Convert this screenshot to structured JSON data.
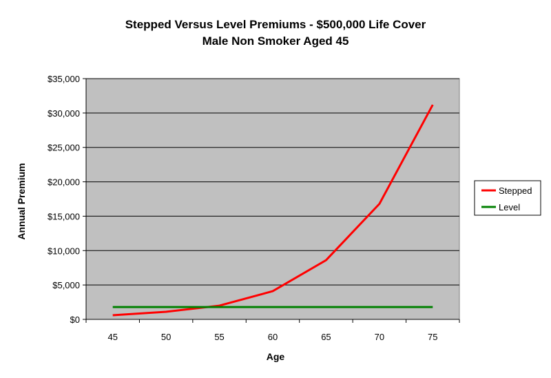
{
  "chart_data": {
    "type": "line",
    "title": "Stepped Versus Level Premiums - $500,000 Life Cover",
    "subtitle": "Male Non Smoker Aged 45",
    "xlabel": "Age",
    "ylabel": "Annual Premium",
    "categories": [
      "45",
      "50",
      "55",
      "60",
      "65",
      "70",
      "75"
    ],
    "y_tick_labels": [
      "$0",
      "$5,000",
      "$10,000",
      "$15,000",
      "$20,000",
      "$25,000",
      "$30,000",
      "$35,000"
    ],
    "ylim": [
      0,
      35000
    ],
    "y_step": 5000,
    "grid": true,
    "legend_position": "right",
    "plot_background": "#c0c0c0",
    "series": [
      {
        "name": "Stepped",
        "color": "#ff0000",
        "values": [
          600,
          1100,
          2000,
          4100,
          8600,
          16800,
          31200
        ]
      },
      {
        "name": "Level",
        "color": "#008000",
        "values": [
          1800,
          1800,
          1800,
          1800,
          1800,
          1800,
          1800
        ]
      }
    ]
  }
}
